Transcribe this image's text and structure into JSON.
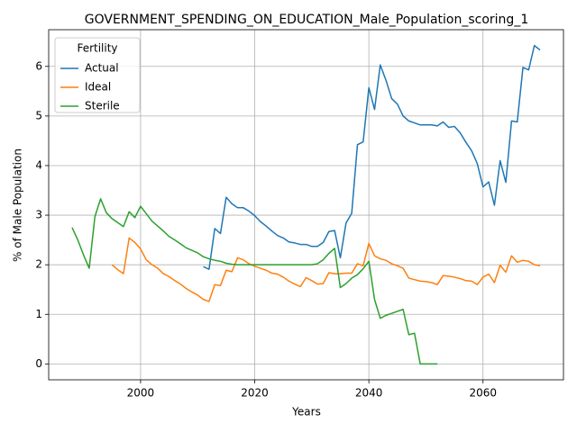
{
  "chart_data": {
    "type": "line",
    "title": "GOVERNMENT_SPENDING_ON_EDUCATION_Male_Population_scoring_1",
    "xlabel": "Years",
    "ylabel": "% of Male Population",
    "legend_title": "Fertility",
    "legend": "upper left",
    "grid": true,
    "x": [
      1988,
      1989,
      1990,
      1991,
      1992,
      1993,
      1994,
      1995,
      1996,
      1997,
      1998,
      1999,
      2000,
      2001,
      2002,
      2003,
      2004,
      2005,
      2006,
      2007,
      2008,
      2009,
      2010,
      2011,
      2012,
      2013,
      2014,
      2015,
      2016,
      2017,
      2018,
      2019,
      2020,
      2021,
      2022,
      2023,
      2024,
      2025,
      2026,
      2027,
      2028,
      2029,
      2030,
      2031,
      2032,
      2033,
      2034,
      2035,
      2036,
      2037,
      2038,
      2039,
      2040,
      2041,
      2042,
      2043,
      2044,
      2045,
      2046,
      2047,
      2048,
      2049,
      2050,
      2051,
      2052,
      2053,
      2054,
      2055,
      2056,
      2057,
      2058,
      2059,
      2060,
      2061,
      2062,
      2063,
      2064,
      2065,
      2066,
      2067,
      2068,
      2069,
      2070
    ],
    "series": [
      {
        "name": "Actual",
        "color": "#1f77b4",
        "values": [
          null,
          null,
          null,
          null,
          null,
          null,
          null,
          null,
          null,
          null,
          null,
          null,
          null,
          null,
          null,
          null,
          null,
          null,
          null,
          null,
          null,
          null,
          null,
          1.96,
          1.91,
          2.73,
          2.63,
          3.36,
          3.23,
          3.15,
          3.15,
          3.08,
          2.99,
          2.87,
          2.78,
          2.68,
          2.59,
          2.54,
          2.46,
          2.44,
          2.41,
          2.41,
          2.37,
          2.37,
          2.45,
          2.67,
          2.69,
          2.14,
          2.84,
          3.04,
          4.42,
          4.48,
          5.57,
          5.13,
          6.03,
          5.72,
          5.35,
          5.24,
          5.0,
          4.9,
          4.86,
          4.82,
          4.82,
          4.82,
          4.8,
          4.88,
          4.77,
          4.79,
          4.66,
          4.47,
          4.3,
          4.04,
          3.57,
          3.67,
          3.2,
          4.1,
          3.66,
          4.9,
          4.88,
          5.98,
          5.93,
          6.42,
          6.33
        ]
      },
      {
        "name": "Ideal",
        "color": "#ff7f0e",
        "values": [
          null,
          null,
          null,
          null,
          null,
          null,
          null,
          2.0,
          1.9,
          1.82,
          2.54,
          2.45,
          2.32,
          2.1,
          2.0,
          1.93,
          1.82,
          1.76,
          1.68,
          1.61,
          1.52,
          1.45,
          1.39,
          1.3,
          1.26,
          1.6,
          1.58,
          1.89,
          1.86,
          2.14,
          2.1,
          2.02,
          1.97,
          1.93,
          1.89,
          1.83,
          1.81,
          1.75,
          1.67,
          1.61,
          1.56,
          1.74,
          1.68,
          1.61,
          1.62,
          1.84,
          1.82,
          1.82,
          1.83,
          1.83,
          2.02,
          1.98,
          2.43,
          2.18,
          2.12,
          2.09,
          2.02,
          1.98,
          1.93,
          1.73,
          1.7,
          1.67,
          1.66,
          1.64,
          1.6,
          1.78,
          1.77,
          1.75,
          1.72,
          1.68,
          1.67,
          1.6,
          1.75,
          1.81,
          1.64,
          1.99,
          1.85,
          2.18,
          2.05,
          2.09,
          2.07,
          2.0,
          1.98
        ]
      },
      {
        "name": "Sterile",
        "color": "#2ca02c",
        "values": [
          2.75,
          2.5,
          2.2,
          1.93,
          2.97,
          3.33,
          3.05,
          2.93,
          2.85,
          2.77,
          3.07,
          2.95,
          3.18,
          3.03,
          2.88,
          2.78,
          2.68,
          2.57,
          2.5,
          2.42,
          2.34,
          2.29,
          2.24,
          2.16,
          2.12,
          2.09,
          2.07,
          2.03,
          2.01,
          2.0,
          2.0,
          2.0,
          2.0,
          2.0,
          2.0,
          2.0,
          2.0,
          2.0,
          2.0,
          2.0,
          2.0,
          2.0,
          2.0,
          2.02,
          2.1,
          2.23,
          2.33,
          1.54,
          1.62,
          1.73,
          1.8,
          1.92,
          2.07,
          1.3,
          0.92,
          0.98,
          1.02,
          1.06,
          1.1,
          0.59,
          0.62,
          0.0,
          0.0,
          0.0,
          0.0,
          null,
          null,
          null,
          null,
          null,
          null,
          null,
          null,
          null,
          null,
          null,
          null,
          null,
          null,
          null,
          null,
          null,
          null
        ]
      }
    ],
    "xlim": [
      1983.9,
      2074.1
    ],
    "xticks": [
      2000,
      2020,
      2040,
      2060
    ],
    "ylim": [
      -0.32,
      6.74
    ],
    "yticks": [
      0,
      1,
      2,
      3,
      4,
      5,
      6
    ]
  }
}
